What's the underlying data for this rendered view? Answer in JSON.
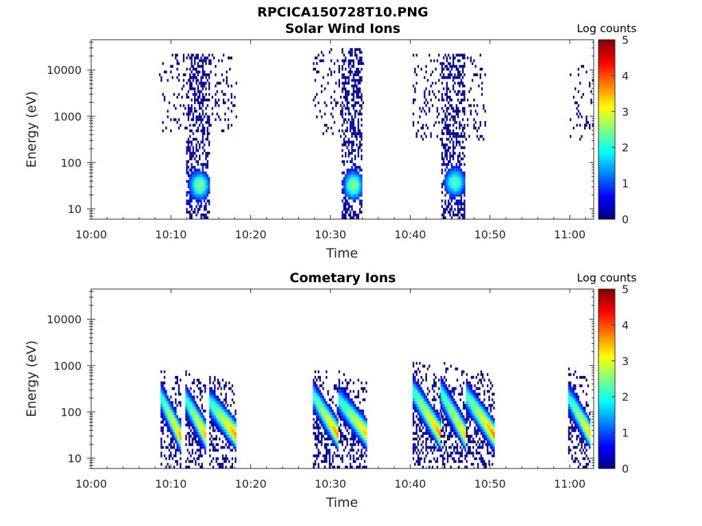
{
  "figure_title": "RPCICA150728T10.PNG",
  "colormap": [
    "#00007f",
    "#0000ff",
    "#007fff",
    "#00ffff",
    "#7fff7f",
    "#ffff00",
    "#ff7f00",
    "#ff0000",
    "#7f0000"
  ],
  "chart_data": [
    {
      "type": "heatmap",
      "title": "Solar Wind Ions",
      "xlabel": "Time",
      "ylabel": "Energy (eV)",
      "x_ticks": [
        "10:00",
        "10:10",
        "10:20",
        "10:30",
        "10:40",
        "10:50",
        "11:00"
      ],
      "x_tick_minutes": [
        0,
        10,
        20,
        30,
        40,
        50,
        60
      ],
      "xlim_minutes": [
        0,
        63
      ],
      "y_scale": "log",
      "y_ticks": [
        "10",
        "100",
        "1000",
        "10000"
      ],
      "ylim": [
        6,
        45000
      ],
      "colorbar": {
        "label": "Log counts",
        "range": [
          0,
          5
        ],
        "ticks": [
          "0",
          "1",
          "2",
          "3",
          "4",
          "5"
        ]
      },
      "grid": false,
      "bursts": [
        {
          "t_start": 8.5,
          "t_end": 18.2,
          "core_start": 11.8,
          "core_end": 14.8,
          "sparse_min_energy": 500,
          "sparse_max_energy": 22000,
          "core_min_energy": 6,
          "peak_energy": 30,
          "peak_log_counts": 2.4
        },
        {
          "t_start": 27.8,
          "t_end": 34.2,
          "core_start": 31.2,
          "core_end": 34.0,
          "sparse_min_energy": 350,
          "sparse_max_energy": 26000,
          "core_min_energy": 6,
          "peak_energy": 30,
          "peak_log_counts": 2.5
        },
        {
          "t_start": 40.3,
          "t_end": 49.5,
          "core_start": 43.8,
          "core_end": 46.8,
          "sparse_min_energy": 300,
          "sparse_max_energy": 22000,
          "core_min_energy": 6,
          "peak_energy": 35,
          "peak_log_counts": 2.2
        },
        {
          "t_start": 60.0,
          "t_end": 63.0,
          "core_start": 0,
          "core_end": 0,
          "sparse_min_energy": 300,
          "sparse_max_energy": 12000,
          "core_min_energy": 300,
          "peak_energy": 0,
          "peak_log_counts": 0
        }
      ]
    },
    {
      "type": "heatmap",
      "title": "Cometary Ions",
      "xlabel": "Time",
      "ylabel": "Energy (eV)",
      "x_ticks": [
        "10:00",
        "10:10",
        "10:20",
        "10:30",
        "10:40",
        "10:50",
        "11:00"
      ],
      "x_tick_minutes": [
        0,
        10,
        20,
        30,
        40,
        50,
        60
      ],
      "xlim_minutes": [
        0,
        63
      ],
      "y_scale": "log",
      "y_ticks": [
        "10",
        "100",
        "1000",
        "10000"
      ],
      "ylim": [
        6,
        45000
      ],
      "colorbar": {
        "label": "Log counts",
        "range": [
          0,
          5
        ],
        "ticks": [
          "0",
          "1",
          "2",
          "3",
          "4",
          "5"
        ]
      },
      "grid": false,
      "dispersion_events": [
        {
          "t_start": 8.7,
          "t_end": 11.2,
          "max_energy": 800,
          "peak_energy": 25,
          "peak_log_counts": 3.6
        },
        {
          "t_start": 11.8,
          "t_end": 14.3,
          "max_energy": 700,
          "peak_energy": 28,
          "peak_log_counts": 3.5
        },
        {
          "t_start": 14.8,
          "t_end": 18.0,
          "max_energy": 600,
          "peak_energy": 30,
          "peak_log_counts": 3.6
        },
        {
          "t_start": 27.8,
          "t_end": 30.8,
          "max_energy": 900,
          "peak_energy": 30,
          "peak_log_counts": 3.6
        },
        {
          "t_start": 31.0,
          "t_end": 34.5,
          "max_energy": 700,
          "peak_energy": 30,
          "peak_log_counts": 3.4
        },
        {
          "t_start": 40.3,
          "t_end": 43.8,
          "max_energy": 1200,
          "peak_energy": 28,
          "peak_log_counts": 3.7
        },
        {
          "t_start": 43.8,
          "t_end": 47.0,
          "max_energy": 1100,
          "peak_energy": 25,
          "peak_log_counts": 3.5
        },
        {
          "t_start": 47.0,
          "t_end": 50.5,
          "max_energy": 900,
          "peak_energy": 28,
          "peak_log_counts": 3.7
        },
        {
          "t_start": 59.8,
          "t_end": 62.6,
          "max_energy": 800,
          "peak_energy": 28,
          "peak_log_counts": 3.4
        }
      ]
    }
  ]
}
